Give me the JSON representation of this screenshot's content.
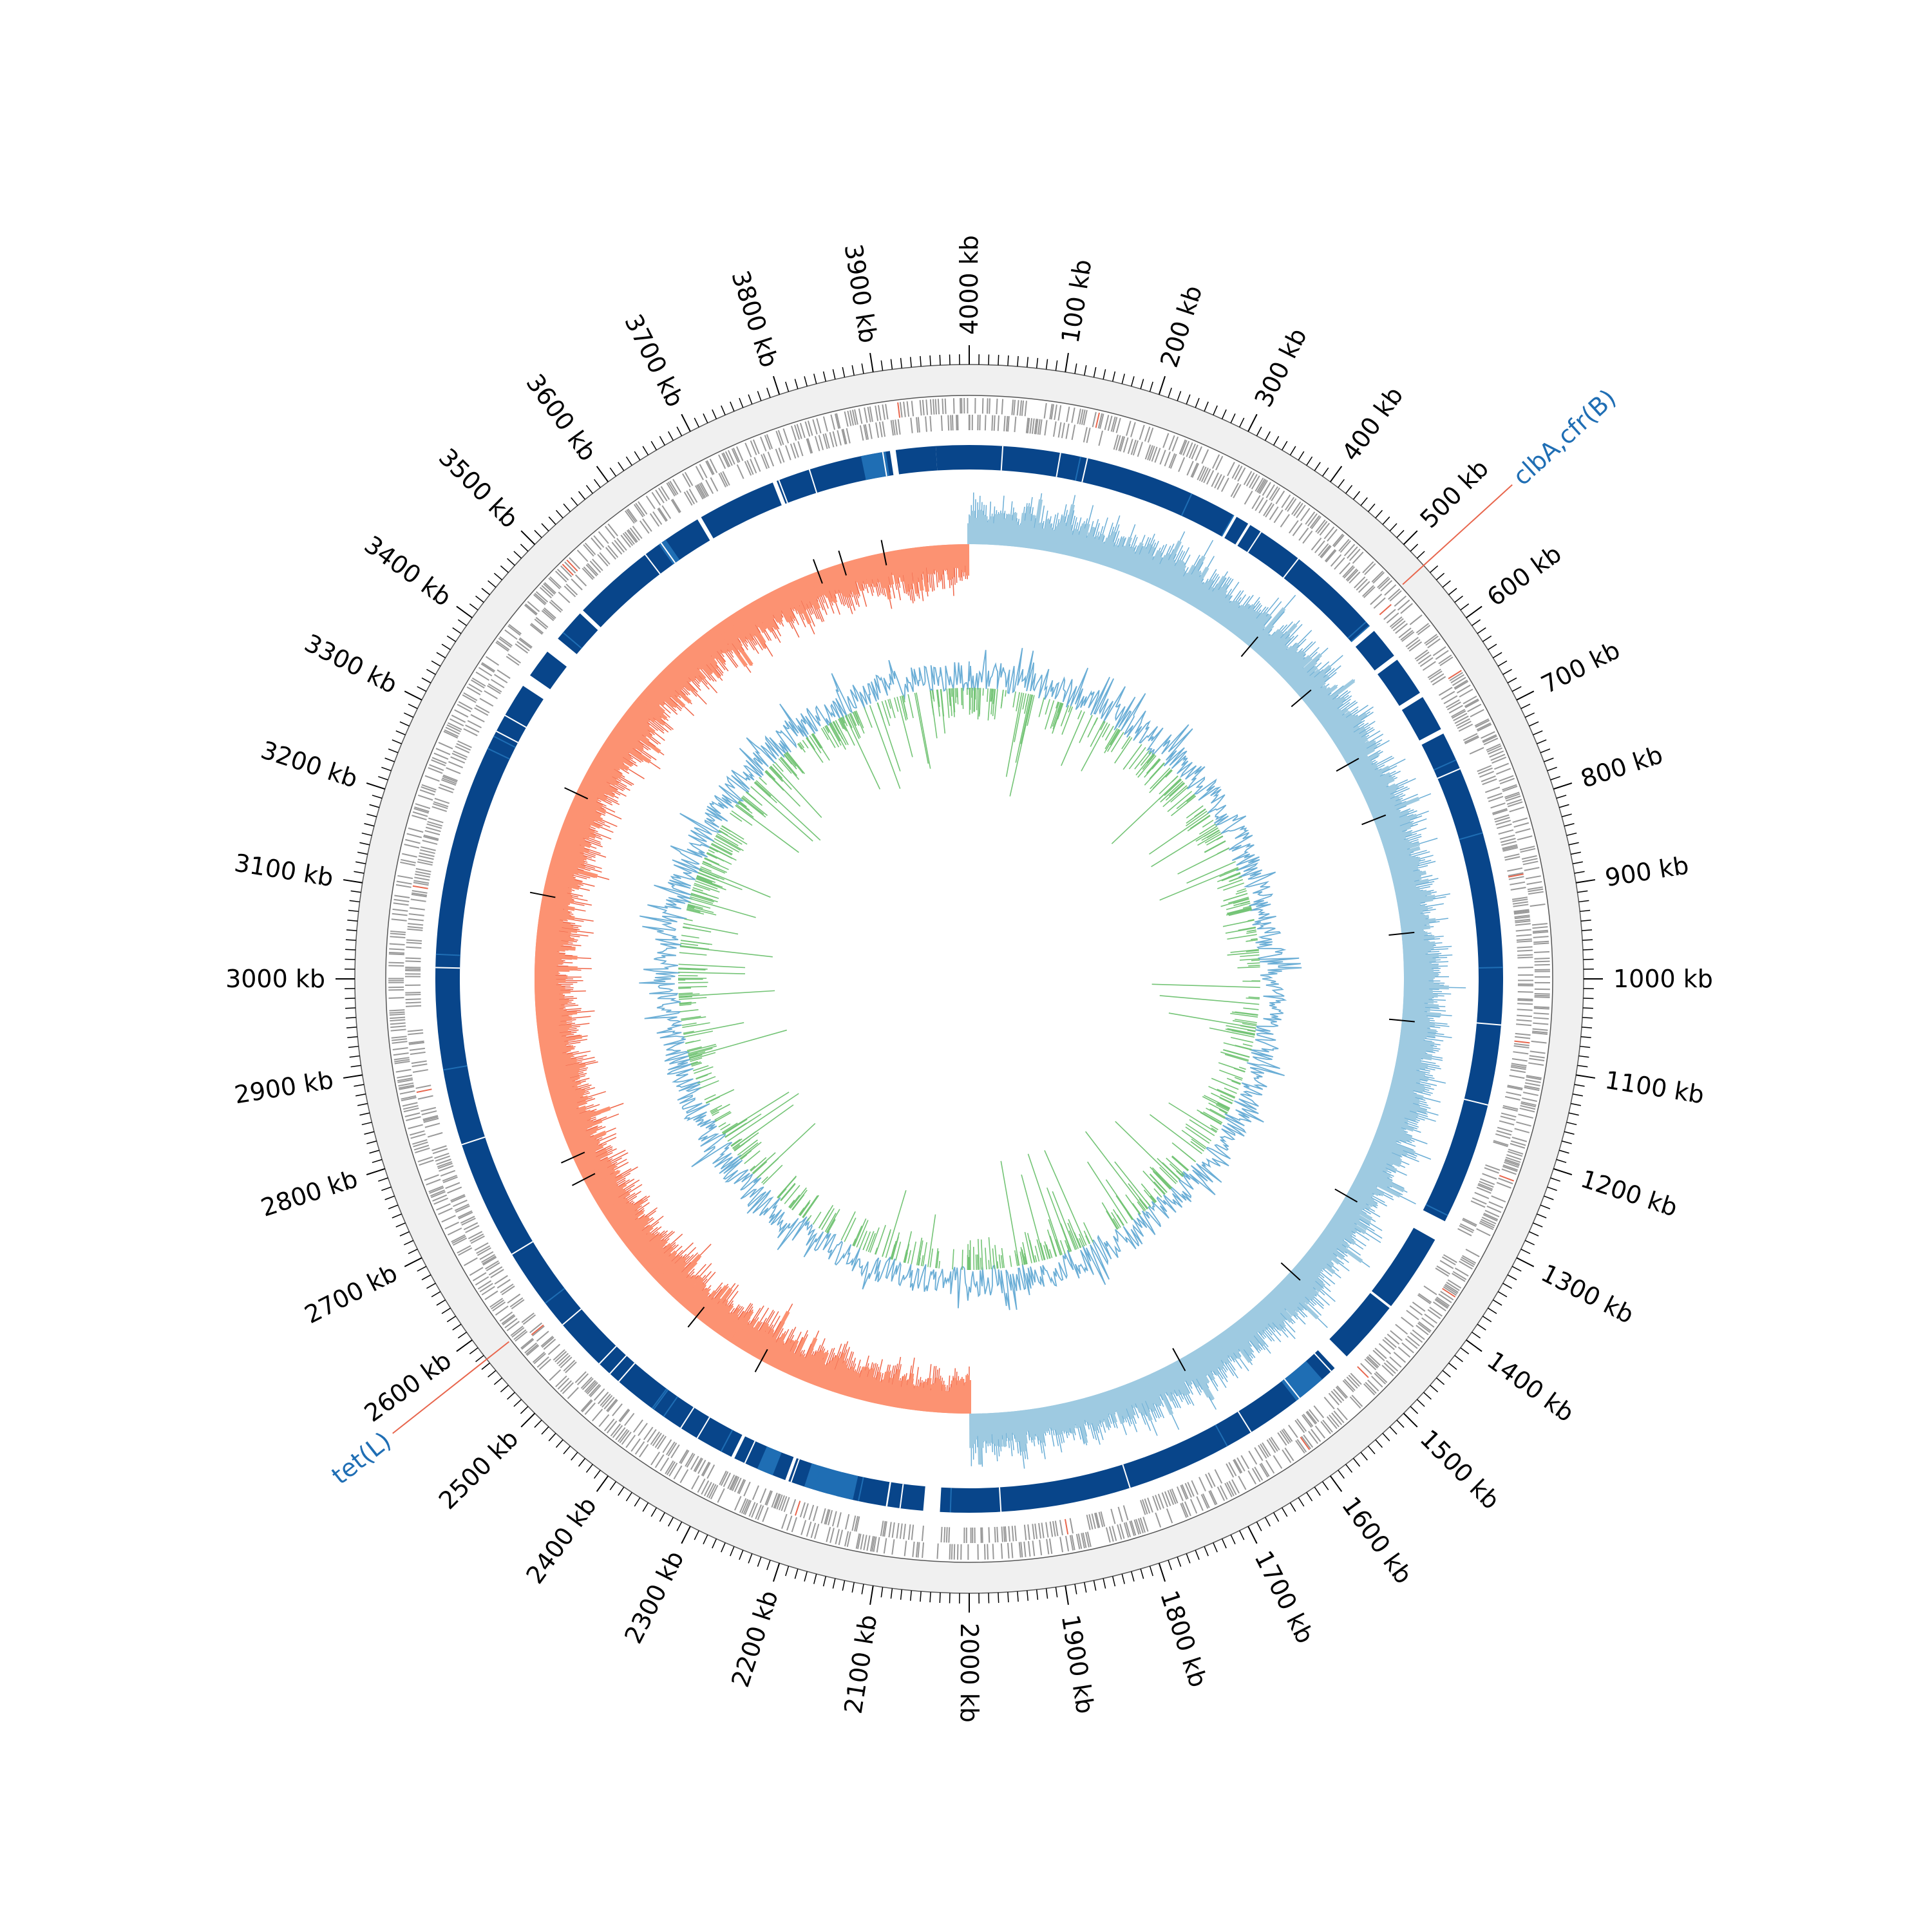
{
  "chart_data": {
    "type": "circular-genome-map",
    "genome_length_kb": 4000,
    "tick_labels": [
      "4000 kb",
      "100 kb",
      "200 kb",
      "300 kb",
      "400 kb",
      "500 kb",
      "600 kb",
      "700 kb",
      "800 kb",
      "900 kb",
      "1000 kb",
      "1100 kb",
      "1200 kb",
      "1300 kb",
      "1400 kb",
      "1500 kb",
      "1600 kb",
      "1700 kb",
      "1800 kb",
      "1900 kb",
      "2000 kb",
      "2100 kb",
      "2200 kb",
      "2300 kb",
      "2400 kb",
      "2500 kb",
      "2600 kb",
      "2700 kb",
      "2800 kb",
      "2900 kb",
      "3000 kb",
      "3100 kb",
      "3200 kb",
      "3300 kb",
      "3400 kb",
      "3500 kb",
      "3600 kb",
      "3700 kb",
      "3800 kb",
      "3900 kb"
    ],
    "tick_positions_kb": [
      0,
      100,
      200,
      300,
      400,
      500,
      600,
      700,
      800,
      900,
      1000,
      1100,
      1200,
      1300,
      1400,
      1500,
      1600,
      1700,
      1800,
      1900,
      2000,
      2100,
      2200,
      2300,
      2400,
      2500,
      2600,
      2700,
      2800,
      2900,
      3000,
      3100,
      3200,
      3300,
      3400,
      3500,
      3600,
      3700,
      3800,
      3900
    ],
    "gene_markers": [
      {
        "label": "clbA,cfr(B)",
        "position_kb": 530
      },
      {
        "label": "tet(L)",
        "position_kb": 2575
      }
    ],
    "gc_skew_sign_switch_kb": [
      0,
      2000
    ],
    "contig_gaps_kb": [
      [
        1300,
        1325
      ],
      [
        2035,
        2055
      ],
      [
        3370,
        3385
      ],
      [
        3420,
        3440
      ]
    ],
    "colors": {
      "ruler_band": "#f0f0f0",
      "cds": "#999999",
      "rna": "#e8664d",
      "blast_hit": "#08458a",
      "blast_hit_light": "#1f6eb4",
      "skew_positive": "#9ecae1",
      "skew_negative": "#fc9272",
      "skew_positive_line": "#6baed6",
      "skew_negative_line": "#ef6548",
      "gc_content": "#6baed6",
      "gc_inner": "#74c476",
      "marker_line": "#e8664d",
      "marker_text": "#1f6eb4"
    }
  }
}
